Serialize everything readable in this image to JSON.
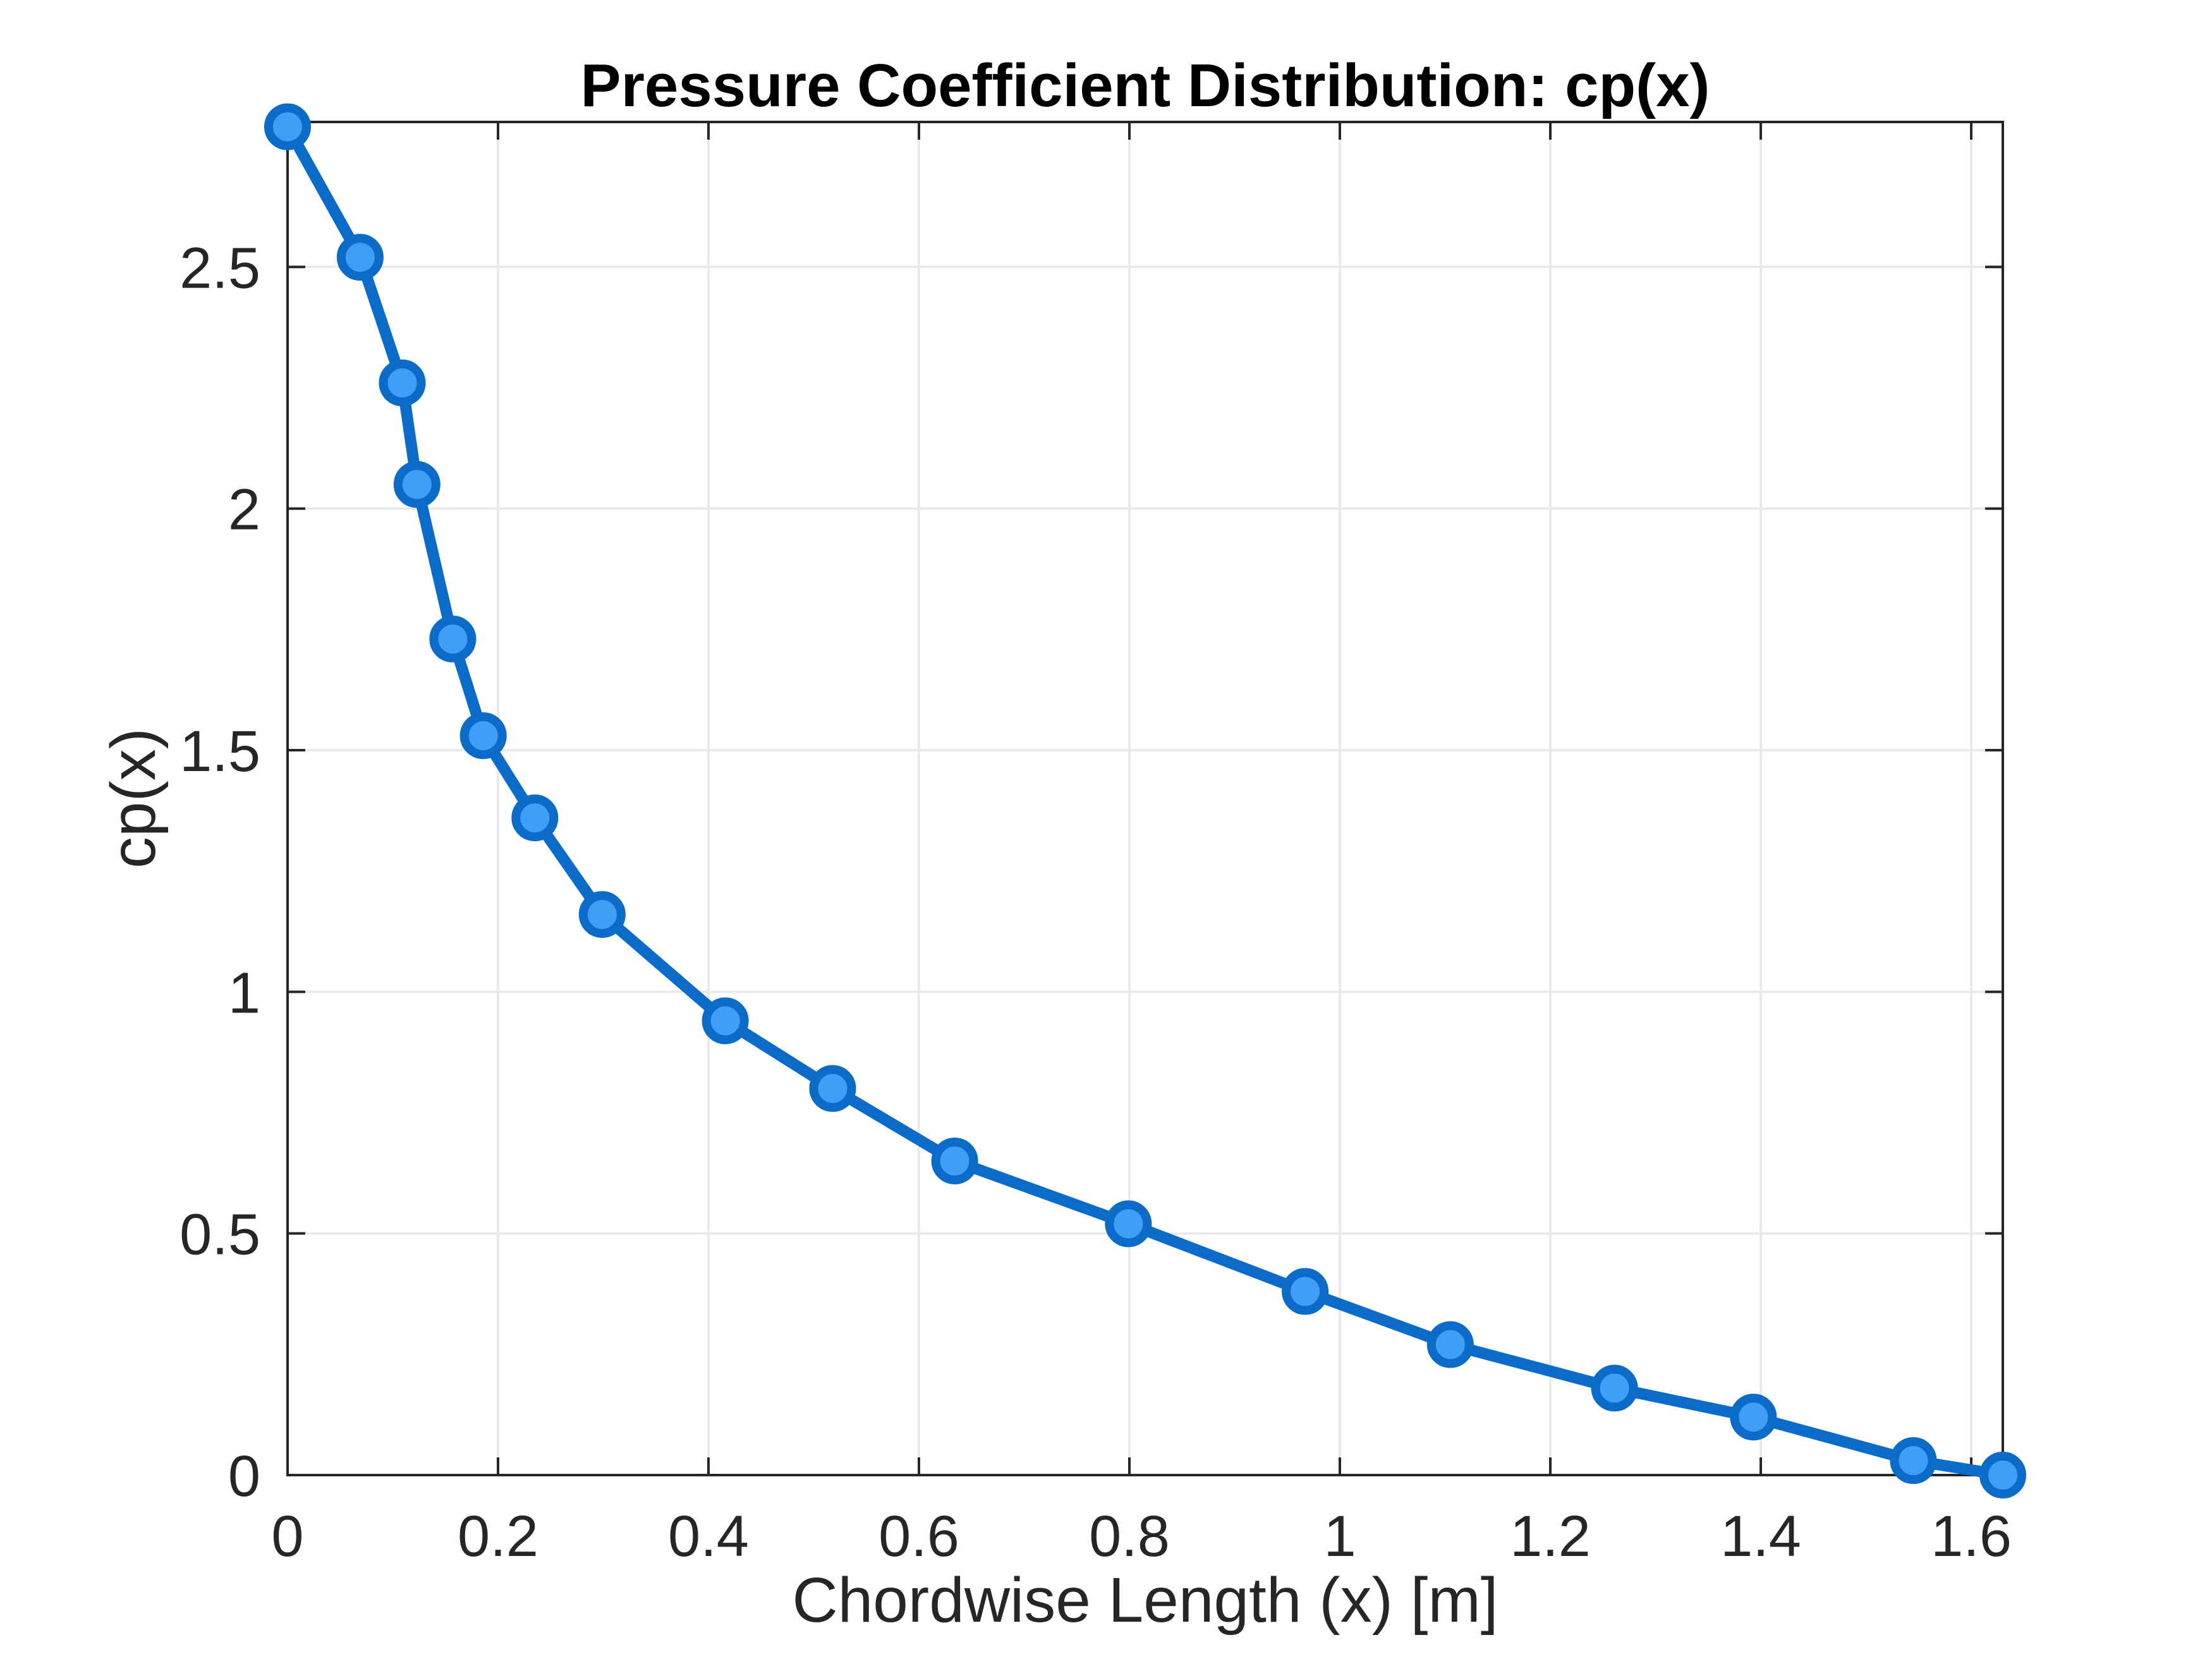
{
  "chart_data": {
    "type": "line",
    "title": "Pressure Coefficient Distribution: cp(x)",
    "xlabel": "Chordwise Length (x) [m]",
    "ylabel": "cp(x)",
    "x": [
      0,
      0.069,
      0.109,
      0.123,
      0.157,
      0.186,
      0.235,
      0.299,
      0.416,
      0.518,
      0.634,
      0.799,
      0.967,
      1.105,
      1.261,
      1.393,
      1.545,
      1.63
    ],
    "y": [
      2.79,
      2.52,
      2.26,
      2.05,
      1.73,
      1.53,
      1.36,
      1.16,
      0.94,
      0.8,
      0.65,
      0.52,
      0.38,
      0.27,
      0.18,
      0.12,
      0.03,
      0.0
    ],
    "xlim": [
      0,
      1.63
    ],
    "ylim": [
      0,
      2.8
    ],
    "x_ticks": [
      0,
      0.2,
      0.4,
      0.6,
      0.8,
      1,
      1.2,
      1.4,
      1.6
    ],
    "x_tick_labels": [
      "0",
      "0.2",
      "0.4",
      "0.6",
      "0.8",
      "1",
      "1.2",
      "1.4",
      "1.6"
    ],
    "y_ticks": [
      0,
      0.5,
      1,
      1.5,
      2,
      2.5
    ],
    "y_tick_labels": [
      "0",
      "0.5",
      "1",
      "1.5",
      "2",
      "2.5"
    ],
    "grid": true,
    "legend": false,
    "colors": {
      "line": "#0b6bc8",
      "marker_fill": "#409df8",
      "grid": "#e8e8e8",
      "axis": "#262626",
      "background": "#ffffff"
    },
    "style": {
      "line_width": 18,
      "marker_radius": 30,
      "marker_ring_width": 14,
      "tick_length": 28
    }
  }
}
